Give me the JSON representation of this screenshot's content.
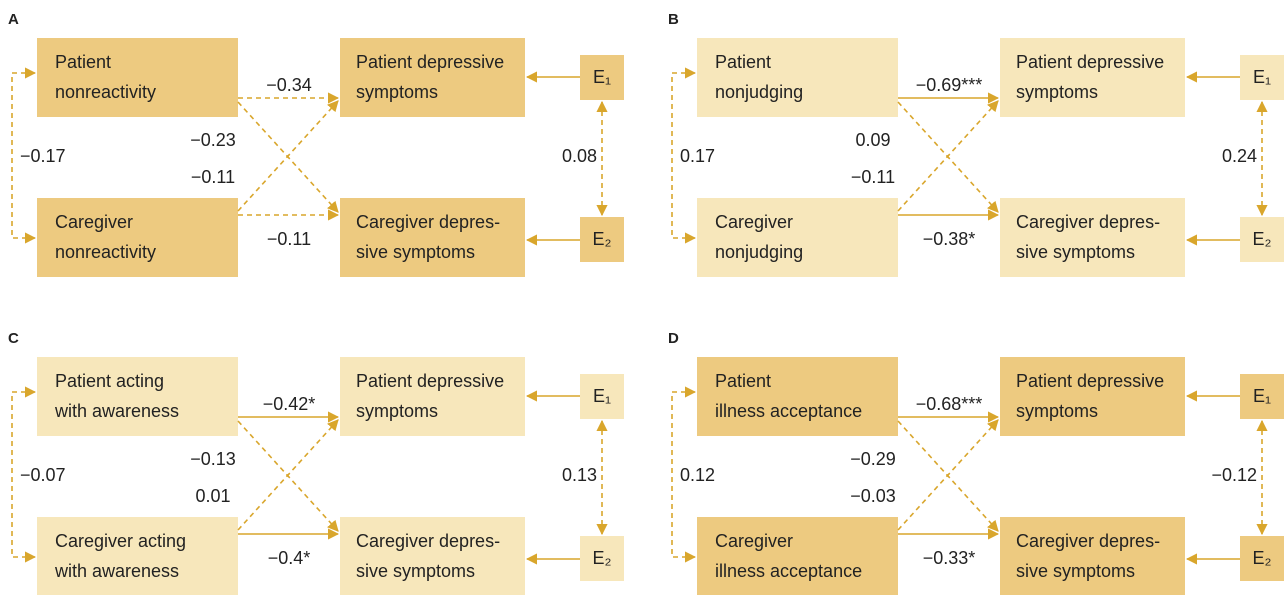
{
  "panels": [
    {
      "label": "A",
      "shade": "#edca80",
      "patient": [
        "Patient",
        "nonreactivity"
      ],
      "caregiver": [
        "Caregiver",
        "nonreactivity"
      ],
      "patient_outcome": [
        "Patient depressive",
        "symptoms"
      ],
      "caregiver_outcome": [
        "Caregiver depres-",
        "sive symptoms"
      ],
      "e1": "E₁",
      "e2": "E₂",
      "pp": {
        "label": "−0.34",
        "style": "dashed"
      },
      "cc": {
        "label": "−0.11",
        "style": "dashed"
      },
      "pc": {
        "label": "−0.23",
        "style": "dashed"
      },
      "cp": {
        "label": "−0.11",
        "style": "dashed"
      },
      "cov_left": "−0.17",
      "cov_right": "0.08"
    },
    {
      "label": "B",
      "shade": "#f7e7bb",
      "patient": [
        "Patient",
        "nonjudging"
      ],
      "caregiver": [
        "Caregiver",
        "nonjudging"
      ],
      "patient_outcome": [
        "Patient depressive",
        "symptoms"
      ],
      "caregiver_outcome": [
        "Caregiver depres-",
        "sive symptoms"
      ],
      "e1": "E₁",
      "e2": "E₂",
      "pp": {
        "label": "−0.69***",
        "style": "solid"
      },
      "cc": {
        "label": "−0.38*",
        "style": "solid"
      },
      "pc": {
        "label": "0.09",
        "style": "dashed"
      },
      "cp": {
        "label": "−0.11",
        "style": "dashed"
      },
      "cov_left": "0.17",
      "cov_right": "0.24"
    },
    {
      "label": "C",
      "shade": "#f7e7bb",
      "patient": [
        "Patient acting",
        "with awareness"
      ],
      "caregiver": [
        "Caregiver acting",
        "with awareness"
      ],
      "patient_outcome": [
        "Patient depressive",
        "symptoms"
      ],
      "caregiver_outcome": [
        "Caregiver depres-",
        "sive symptoms"
      ],
      "e1": "E₁",
      "e2": "E₂",
      "pp": {
        "label": "−0.42*",
        "style": "solid"
      },
      "cc": {
        "label": "−0.4*",
        "style": "solid"
      },
      "pc": {
        "label": "−0.13",
        "style": "dashed"
      },
      "cp": {
        "label": "0.01",
        "style": "dashed"
      },
      "cov_left": "−0.07",
      "cov_right": "0.13"
    },
    {
      "label": "D",
      "shade": "#edca80",
      "patient": [
        "Patient",
        "illness acceptance"
      ],
      "caregiver": [
        "Caregiver",
        "illness acceptance"
      ],
      "patient_outcome": [
        "Patient depressive",
        "symptoms"
      ],
      "caregiver_outcome": [
        "Caregiver depres-",
        "sive symptoms"
      ],
      "e1": "E₁",
      "e2": "E₂",
      "pp": {
        "label": "−0.68***",
        "style": "solid"
      },
      "cc": {
        "label": "−0.33*",
        "style": "solid"
      },
      "pc": {
        "label": "−0.29",
        "style": "dashed"
      },
      "cp": {
        "label": "−0.03",
        "style": "dashed"
      },
      "cov_left": "0.12",
      "cov_right": "−0.12"
    }
  ]
}
